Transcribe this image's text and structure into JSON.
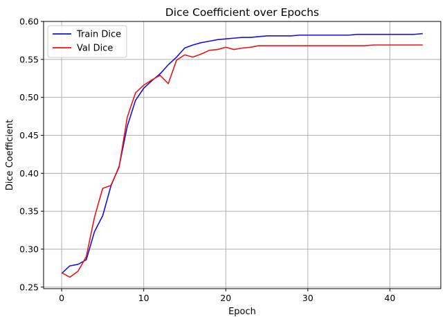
{
  "chart_data": {
    "type": "line",
    "title": "Dice Coefficient over Epochs",
    "xlabel": "Epoch",
    "ylabel": "Dice Coefficient",
    "xlim": [
      -2.2,
      46.2
    ],
    "ylim": [
      0.248,
      0.6
    ],
    "xticks": [
      0,
      10,
      20,
      30,
      40
    ],
    "yticks": [
      0.25,
      0.3,
      0.35,
      0.4,
      0.45,
      0.5,
      0.55,
      0.6
    ],
    "grid": true,
    "legend_position": "top-left",
    "series": [
      {
        "name": "Train Dice",
        "color": "#1010e0",
        "x": [
          0,
          1,
          2,
          3,
          4,
          5,
          6,
          7,
          8,
          9,
          10,
          11,
          12,
          13,
          14,
          15,
          16,
          17,
          18,
          19,
          20,
          21,
          22,
          23,
          24,
          25,
          26,
          27,
          28,
          29,
          30,
          31,
          32,
          33,
          34,
          35,
          36,
          37,
          38,
          39,
          40,
          41,
          42,
          43,
          44
        ],
        "y": [
          0.268,
          0.278,
          0.28,
          0.286,
          0.323,
          0.344,
          0.383,
          0.409,
          0.462,
          0.496,
          0.512,
          0.522,
          0.531,
          0.543,
          0.553,
          0.565,
          0.569,
          0.572,
          0.574,
          0.576,
          0.577,
          0.578,
          0.579,
          0.579,
          0.58,
          0.581,
          0.581,
          0.581,
          0.581,
          0.582,
          0.582,
          0.582,
          0.582,
          0.582,
          0.582,
          0.582,
          0.583,
          0.583,
          0.583,
          0.583,
          0.583,
          0.583,
          0.583,
          0.583,
          0.584
        ]
      },
      {
        "name": "Val Dice",
        "color": "#ee1111",
        "x": [
          0,
          1,
          2,
          3,
          4,
          5,
          6,
          7,
          8,
          9,
          10,
          11,
          12,
          13,
          14,
          15,
          16,
          17,
          18,
          19,
          20,
          21,
          22,
          23,
          24,
          25,
          26,
          27,
          28,
          29,
          30,
          31,
          32,
          33,
          34,
          35,
          36,
          37,
          38,
          39,
          40,
          41,
          42,
          43,
          44
        ],
        "y": [
          0.269,
          0.263,
          0.271,
          0.29,
          0.342,
          0.38,
          0.384,
          0.408,
          0.474,
          0.506,
          0.516,
          0.523,
          0.529,
          0.518,
          0.549,
          0.556,
          0.553,
          0.557,
          0.562,
          0.563,
          0.566,
          0.563,
          0.565,
          0.566,
          0.568,
          0.568,
          0.568,
          0.568,
          0.568,
          0.568,
          0.568,
          0.568,
          0.568,
          0.568,
          0.568,
          0.568,
          0.568,
          0.568,
          0.569,
          0.569,
          0.569,
          0.569,
          0.569,
          0.569,
          0.569
        ]
      }
    ]
  }
}
